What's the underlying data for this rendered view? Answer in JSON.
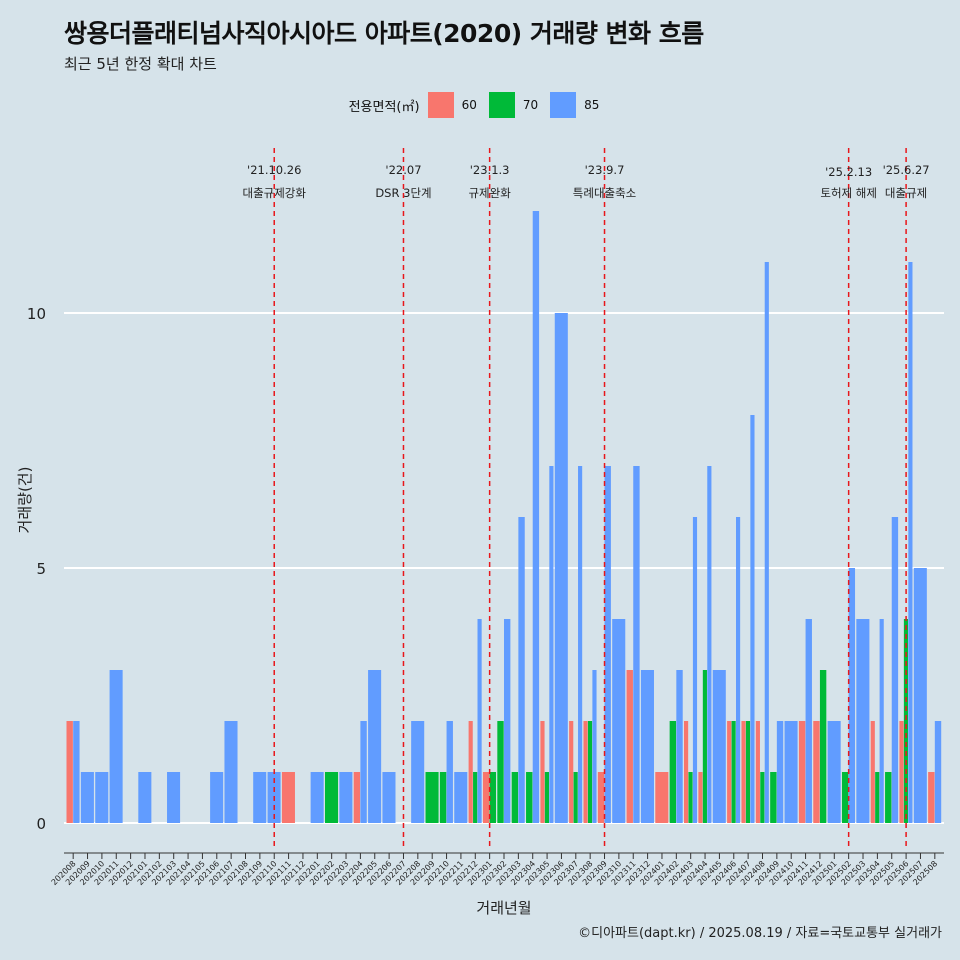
{
  "title": "쌍용더플래티넘사직아시아드 아파트(2020) 거래량 변화 흐름",
  "subtitle": "최근 5년 한정 확대 차트",
  "caption": "©디아파트(dapt.kr) / 2025.08.19 / 자료=국토교통부 실거래가",
  "legend": {
    "title": "전용면적(㎡)",
    "items": [
      {
        "label": "60",
        "color": "#f8766d"
      },
      {
        "label": "70",
        "color": "#00ba38"
      },
      {
        "label": "85",
        "color": "#619cff"
      }
    ]
  },
  "chart_data": {
    "type": "bar",
    "xlabel": "거래년월",
    "ylabel": "거래량(건)",
    "ylim": [
      0,
      12
    ],
    "yticks": [
      0,
      5,
      10
    ],
    "grid": "horizontal",
    "legend_position": "top",
    "categories": [
      "202008",
      "202009",
      "202010",
      "202011",
      "202012",
      "202101",
      "202102",
      "202103",
      "202104",
      "202105",
      "202106",
      "202107",
      "202108",
      "202109",
      "202110",
      "202111",
      "202112",
      "202201",
      "202202",
      "202203",
      "202204",
      "202205",
      "202206",
      "202207",
      "202208",
      "202209",
      "202210",
      "202211",
      "202212",
      "202301",
      "202302",
      "202303",
      "202304",
      "202305",
      "202306",
      "202307",
      "202308",
      "202309",
      "202310",
      "202311",
      "202312",
      "202401",
      "202402",
      "202403",
      "202404",
      "202405",
      "202406",
      "202407",
      "202408",
      "202409",
      "202410",
      "202411",
      "202412",
      "202501",
      "202502",
      "202503",
      "202504",
      "202505",
      "202506",
      "202507",
      "202508"
    ],
    "series": [
      {
        "name": "60",
        "color": "#f8766d",
        "values": [
          2,
          0,
          0,
          0,
          0,
          0,
          0,
          0,
          0,
          0,
          0,
          0,
          0,
          0,
          0,
          1,
          0,
          0,
          0,
          0,
          1,
          0,
          0,
          0,
          0,
          0,
          0,
          0,
          2,
          1,
          0,
          0,
          0,
          2,
          0,
          2,
          2,
          1,
          0,
          3,
          0,
          1,
          0,
          2,
          1,
          0,
          2,
          2,
          2,
          0,
          0,
          2,
          2,
          0,
          0,
          0,
          2,
          0,
          2,
          0,
          1
        ]
      },
      {
        "name": "70",
        "color": "#00ba38",
        "values": [
          0,
          0,
          0,
          0,
          0,
          0,
          0,
          0,
          0,
          0,
          0,
          0,
          0,
          0,
          0,
          0,
          0,
          0,
          1,
          0,
          0,
          0,
          0,
          0,
          0,
          1,
          1,
          0,
          1,
          1,
          2,
          1,
          1,
          1,
          0,
          1,
          2,
          0,
          0,
          0,
          0,
          0,
          2,
          1,
          3,
          0,
          2,
          2,
          1,
          1,
          0,
          0,
          3,
          0,
          1,
          0,
          1,
          1,
          4,
          0,
          0
        ]
      },
      {
        "name": "85",
        "color": "#619cff",
        "values": [
          2,
          1,
          1,
          3,
          0,
          1,
          0,
          1,
          0,
          0,
          1,
          2,
          0,
          1,
          1,
          0,
          0,
          1,
          0,
          1,
          2,
          3,
          1,
          0,
          2,
          0,
          2,
          1,
          4,
          0,
          4,
          6,
          12,
          7,
          10,
          7,
          3,
          7,
          4,
          7,
          3,
          0,
          3,
          6,
          7,
          3,
          6,
          8,
          11,
          2,
          2,
          4,
          0,
          2,
          5,
          4,
          4,
          6,
          11,
          5,
          2
        ]
      }
    ],
    "annotations": [
      {
        "category": "202110",
        "date": "'21.10.26",
        "label": "대출규제강화"
      },
      {
        "category": "202207",
        "date": "'22.07",
        "label": "DSR 3단계"
      },
      {
        "category": "202301",
        "date": "'23.1.3",
        "label": "규제완화"
      },
      {
        "category": "202309",
        "date": "'23.9.7",
        "label": "특례대출축소"
      },
      {
        "category": "202502",
        "date": "'25.2.13",
        "label": "토허제 해제"
      },
      {
        "category": "202506",
        "date": "'25.6.27",
        "label": "대출규제"
      }
    ]
  }
}
